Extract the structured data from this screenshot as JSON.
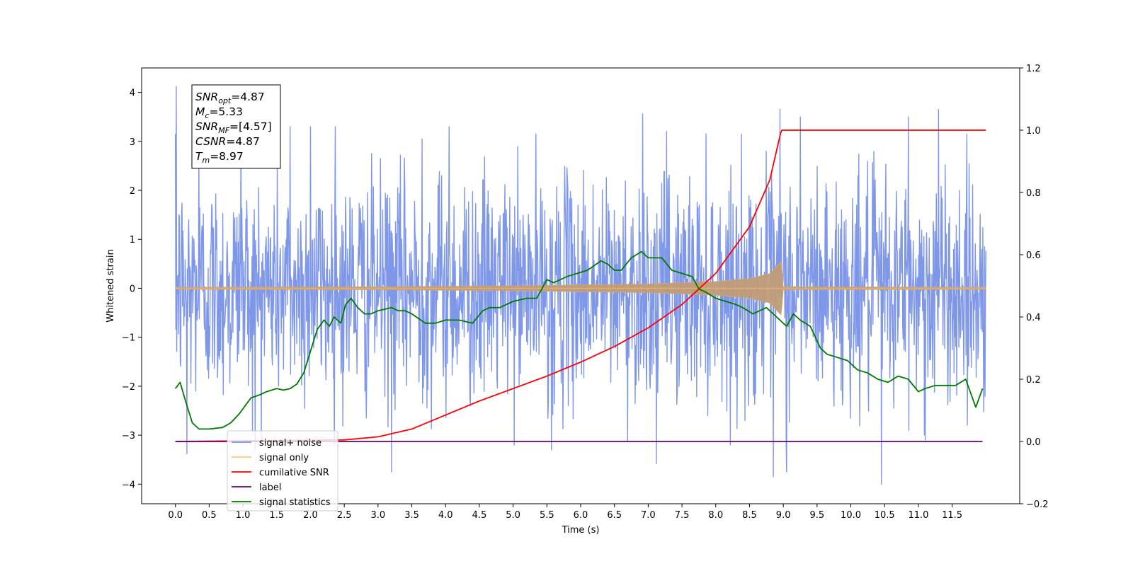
{
  "chart_data": {
    "type": "line",
    "title": "",
    "xlabel": "Time (s)",
    "ylabel": "Whitened strain",
    "y2label": "",
    "xlim": [
      -0.5,
      12.5
    ],
    "ylim": [
      -4.4,
      4.5
    ],
    "y2lim": [
      -0.2,
      1.2
    ],
    "x_ticks": [
      0.0,
      0.5,
      1.0,
      1.5,
      2.0,
      2.5,
      3.0,
      3.5,
      4.0,
      4.5,
      5.0,
      5.5,
      6.0,
      6.5,
      7.0,
      7.5,
      8.0,
      8.5,
      9.0,
      9.5,
      10.0,
      10.5,
      11.0,
      11.5
    ],
    "x_tick_labels": [
      "0.0",
      "0.5",
      "1.0",
      "1.5",
      "2.0",
      "2.5",
      "3.0",
      "3.5",
      "4.0",
      "4.5",
      "5.0",
      "5.5",
      "6.0",
      "6.5",
      "7.0",
      "7.5",
      "8.0",
      "8.5",
      "9.0",
      "9.5",
      "10.0",
      "10.5",
      "11.0",
      "11.5"
    ],
    "y_ticks": [
      -4,
      -3,
      -2,
      -1,
      0,
      1,
      2,
      3,
      4
    ],
    "y_tick_labels": [
      "−4",
      "−3",
      "−2",
      "−1",
      "0",
      "1",
      "2",
      "3",
      "4"
    ],
    "y2_ticks": [
      -0.2,
      0.0,
      0.2,
      0.4,
      0.6,
      0.8,
      1.0,
      1.2
    ],
    "y2_tick_labels": [
      "−0.2",
      "0.0",
      "0.2",
      "0.4",
      "0.6",
      "0.8",
      "1.0",
      "1.2"
    ],
    "grid": false,
    "legend_position": "lower-left",
    "legend": [
      {
        "label": "signal+ noise",
        "color": "#7891e8"
      },
      {
        "label": "signal only",
        "color": "#ffc870"
      },
      {
        "label": "cumilative SNR",
        "color": "#ff0000"
      },
      {
        "label": "label",
        "color": "#6a006a"
      },
      {
        "label": "signal statistics",
        "color": "#007a00"
      }
    ],
    "annotations": [
      {
        "id": "snr_opt",
        "base": "SNR",
        "sub": "opt",
        "value": "=4.87"
      },
      {
        "id": "mc",
        "base": "M",
        "sub": "c",
        "value": "=5.33"
      },
      {
        "id": "snr_mf",
        "base": "SNR",
        "sub": "MF",
        "value": "=[4.57]"
      },
      {
        "id": "csnr",
        "base": "CSNR",
        "sub": "",
        "value": "=4.87"
      },
      {
        "id": "tm",
        "base": "T",
        "sub": "m",
        "value": "=8.97"
      }
    ],
    "series": [
      {
        "name": "signal+ noise",
        "axis": "left",
        "color": "#7891e8",
        "style": "noise",
        "x_range": [
          0.0,
          12.0
        ],
        "envelope_typical": 1.2,
        "peaks_x": [
          0.01,
          0.35,
          0.97,
          1.7,
          2.0,
          2.37,
          3.2,
          3.65,
          4.05,
          6.92,
          7.27,
          8.95,
          9.05,
          9.25,
          10.85,
          11.3
        ],
        "peaks_y": [
          4.12,
          2.95,
          3.55,
          3.3,
          3.3,
          3.3,
          3.5,
          3.05,
          3.3,
          3.56,
          3.2,
          3.66,
          3.55,
          3.5,
          3.5,
          3.65
        ],
        "troughs_x": [
          0.17,
          1.18,
          3.2,
          5.57,
          7.12,
          8.85,
          9.05,
          10.45,
          11.1
        ],
        "troughs_y": [
          -3.38,
          -3.3,
          -3.75,
          -3.3,
          -3.58,
          -3.85,
          -3.75,
          -4.0,
          -3.1
        ]
      },
      {
        "name": "signal only",
        "axis": "left",
        "color": "#ffc870",
        "style": "chirp",
        "x_range": [
          0.0,
          12.0
        ],
        "merger_x": 8.97,
        "envelope_x": [
          0.0,
          3.0,
          5.0,
          7.0,
          8.0,
          8.5,
          8.8,
          8.97,
          9.0,
          12.0
        ],
        "envelope_y": [
          0.02,
          0.03,
          0.05,
          0.09,
          0.14,
          0.2,
          0.3,
          0.55,
          0.03,
          0.02
        ]
      },
      {
        "name": "cumilative SNR",
        "axis": "right",
        "color": "#ff0000",
        "x": [
          0.0,
          2.5,
          3.0,
          3.5,
          4.0,
          4.5,
          5.0,
          5.5,
          6.0,
          6.5,
          7.0,
          7.5,
          8.0,
          8.5,
          8.8,
          8.97,
          9.2,
          12.0
        ],
        "y": [
          0.0,
          0.005,
          0.015,
          0.04,
          0.085,
          0.13,
          0.17,
          0.21,
          0.255,
          0.305,
          0.365,
          0.44,
          0.54,
          0.69,
          0.84,
          1.0,
          1.0,
          1.0
        ]
      },
      {
        "name": "label",
        "axis": "right",
        "color": "#6a006a",
        "x": [
          0.0,
          11.95
        ],
        "y": [
          0.0,
          0.0
        ]
      },
      {
        "name": "signal statistics",
        "axis": "right",
        "color": "#007a00",
        "x": [
          0.0,
          0.07,
          0.15,
          0.25,
          0.35,
          0.5,
          0.7,
          0.82,
          0.95,
          1.05,
          1.12,
          1.25,
          1.35,
          1.5,
          1.6,
          1.7,
          1.8,
          1.9,
          2.0,
          2.1,
          2.2,
          2.28,
          2.35,
          2.45,
          2.52,
          2.6,
          2.7,
          2.8,
          2.9,
          3.0,
          3.2,
          3.3,
          3.4,
          3.5,
          3.7,
          3.85,
          4.0,
          4.2,
          4.4,
          4.55,
          4.65,
          4.8,
          5.0,
          5.2,
          5.35,
          5.5,
          5.6,
          5.8,
          5.95,
          6.1,
          6.3,
          6.4,
          6.5,
          6.6,
          6.75,
          6.9,
          7.0,
          7.1,
          7.2,
          7.35,
          7.5,
          7.65,
          7.75,
          7.85,
          8.0,
          8.15,
          8.3,
          8.4,
          8.55,
          8.75,
          8.9,
          9.05,
          9.15,
          9.25,
          9.4,
          9.55,
          9.65,
          9.8,
          9.95,
          10.1,
          10.25,
          10.4,
          10.55,
          10.7,
          10.85,
          11.0,
          11.1,
          11.25,
          11.45,
          11.55,
          11.7,
          11.85,
          11.95
        ],
        "y": [
          0.17,
          0.19,
          0.13,
          0.06,
          0.04,
          0.04,
          0.045,
          0.06,
          0.09,
          0.12,
          0.14,
          0.15,
          0.16,
          0.17,
          0.165,
          0.17,
          0.185,
          0.22,
          0.29,
          0.36,
          0.39,
          0.37,
          0.4,
          0.38,
          0.44,
          0.46,
          0.43,
          0.41,
          0.41,
          0.42,
          0.43,
          0.42,
          0.42,
          0.41,
          0.38,
          0.38,
          0.39,
          0.39,
          0.38,
          0.42,
          0.43,
          0.43,
          0.45,
          0.46,
          0.46,
          0.52,
          0.51,
          0.53,
          0.54,
          0.55,
          0.58,
          0.57,
          0.55,
          0.55,
          0.59,
          0.61,
          0.59,
          0.59,
          0.59,
          0.55,
          0.54,
          0.53,
          0.49,
          0.48,
          0.46,
          0.45,
          0.44,
          0.43,
          0.41,
          0.43,
          0.4,
          0.37,
          0.41,
          0.39,
          0.37,
          0.3,
          0.28,
          0.27,
          0.26,
          0.23,
          0.22,
          0.2,
          0.19,
          0.21,
          0.2,
          0.16,
          0.17,
          0.18,
          0.18,
          0.18,
          0.2,
          0.11,
          0.17
        ]
      }
    ]
  }
}
